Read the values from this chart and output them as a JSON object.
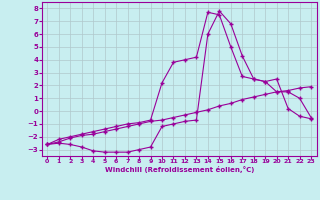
{
  "xlabel": "Windchill (Refroidissement éolien,°C)",
  "bg_color": "#c8eef0",
  "line_color": "#990099",
  "grid_color": "#b0c8cc",
  "xlim": [
    -0.5,
    23.5
  ],
  "ylim": [
    -3.5,
    8.5
  ],
  "xticks": [
    0,
    1,
    2,
    3,
    4,
    5,
    6,
    7,
    8,
    9,
    10,
    11,
    12,
    13,
    14,
    15,
    16,
    17,
    18,
    19,
    20,
    21,
    22,
    23
  ],
  "yticks": [
    -3,
    -2,
    -1,
    0,
    1,
    2,
    3,
    4,
    5,
    6,
    7,
    8
  ],
  "line1_x": [
    0,
    1,
    2,
    3,
    4,
    5,
    6,
    7,
    8,
    9,
    10,
    11,
    12,
    13,
    14,
    15,
    16,
    17,
    18,
    19,
    20,
    21,
    22,
    23
  ],
  "line1_y": [
    -2.6,
    -2.5,
    -2.6,
    -2.8,
    -3.1,
    -3.2,
    -3.2,
    -3.2,
    -3.0,
    -2.8,
    -1.2,
    -1.0,
    -0.8,
    -0.7,
    6.0,
    7.8,
    6.8,
    4.3,
    2.5,
    2.3,
    2.5,
    0.2,
    -0.4,
    -0.6
  ],
  "line2_x": [
    0,
    1,
    2,
    3,
    4,
    5,
    6,
    7,
    8,
    9,
    10,
    11,
    12,
    13,
    14,
    15,
    16,
    17,
    18,
    19,
    20,
    21,
    22,
    23
  ],
  "line2_y": [
    -2.6,
    -2.4,
    -2.1,
    -1.9,
    -1.8,
    -1.6,
    -1.4,
    -1.2,
    -1.0,
    -0.8,
    -0.7,
    -0.5,
    -0.3,
    -0.1,
    0.1,
    0.4,
    0.6,
    0.9,
    1.1,
    1.3,
    1.5,
    1.6,
    1.8,
    1.9
  ],
  "line3_x": [
    0,
    1,
    2,
    3,
    4,
    5,
    6,
    7,
    8,
    9,
    10,
    11,
    12,
    13,
    14,
    15,
    16,
    17,
    18,
    19,
    20,
    21,
    22,
    23
  ],
  "line3_y": [
    -2.6,
    -2.2,
    -2.0,
    -1.8,
    -1.6,
    -1.4,
    -1.2,
    -1.0,
    -0.9,
    -0.7,
    2.2,
    3.8,
    4.0,
    4.2,
    7.7,
    7.5,
    5.0,
    2.7,
    2.5,
    2.3,
    1.5,
    1.5,
    1.0,
    -0.5
  ],
  "marker_size": 2.5,
  "line_width": 0.8
}
